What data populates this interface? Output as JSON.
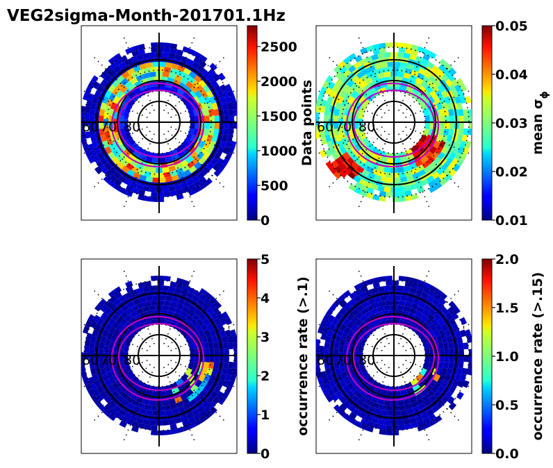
{
  "title": "VEG2sigma-Month-201701.1Hz",
  "colors": {
    "oval": "#c000c0",
    "grid": "#000000",
    "frame": "#000000"
  },
  "chart_data": [
    {
      "type": "heatmap",
      "projection": "polar",
      "position": "top-left",
      "lat_labels": [
        "60",
        "70",
        "80"
      ],
      "colorbar": {
        "label": "Data points",
        "vmin": 0,
        "vmax": 2800,
        "ticks": [
          "0",
          "500",
          "1000",
          "1500",
          "2000",
          "2500"
        ],
        "tick_values": [
          0,
          500,
          1000,
          1500,
          2000,
          2500
        ]
      },
      "pattern": "counts"
    },
    {
      "type": "heatmap",
      "projection": "polar",
      "position": "top-right",
      "lat_labels": [
        "60",
        "70",
        "80"
      ],
      "colorbar": {
        "label": "mean σ",
        "label_sub": "ϕ",
        "vmin": 0.01,
        "vmax": 0.05,
        "ticks": [
          "0.01",
          "0.02",
          "0.03",
          "0.04",
          "0.05"
        ],
        "tick_values": [
          0.01,
          0.02,
          0.03,
          0.04,
          0.05
        ]
      },
      "pattern": "sigma"
    },
    {
      "type": "heatmap",
      "projection": "polar",
      "position": "bottom-left",
      "lat_labels": [
        "60",
        "70",
        "80"
      ],
      "colorbar": {
        "label": "occurrence rate (>.1)",
        "vmin": 0,
        "vmax": 5,
        "ticks": [
          "0",
          "1",
          "2",
          "3",
          "4",
          "5"
        ],
        "tick_values": [
          0,
          1,
          2,
          3,
          4,
          5
        ]
      },
      "pattern": "occ1"
    },
    {
      "type": "heatmap",
      "projection": "polar",
      "position": "bottom-right",
      "lat_labels": [
        "60",
        "70",
        "80"
      ],
      "colorbar": {
        "label": "occurrence rate (>.15)",
        "vmin": 0,
        "vmax": 2,
        "ticks": [
          "0.0",
          "0.5",
          "1.0",
          "1.5",
          "2.0"
        ],
        "tick_values": [
          0,
          0.5,
          1.0,
          1.5,
          2.0
        ]
      },
      "pattern": "occ15"
    }
  ]
}
